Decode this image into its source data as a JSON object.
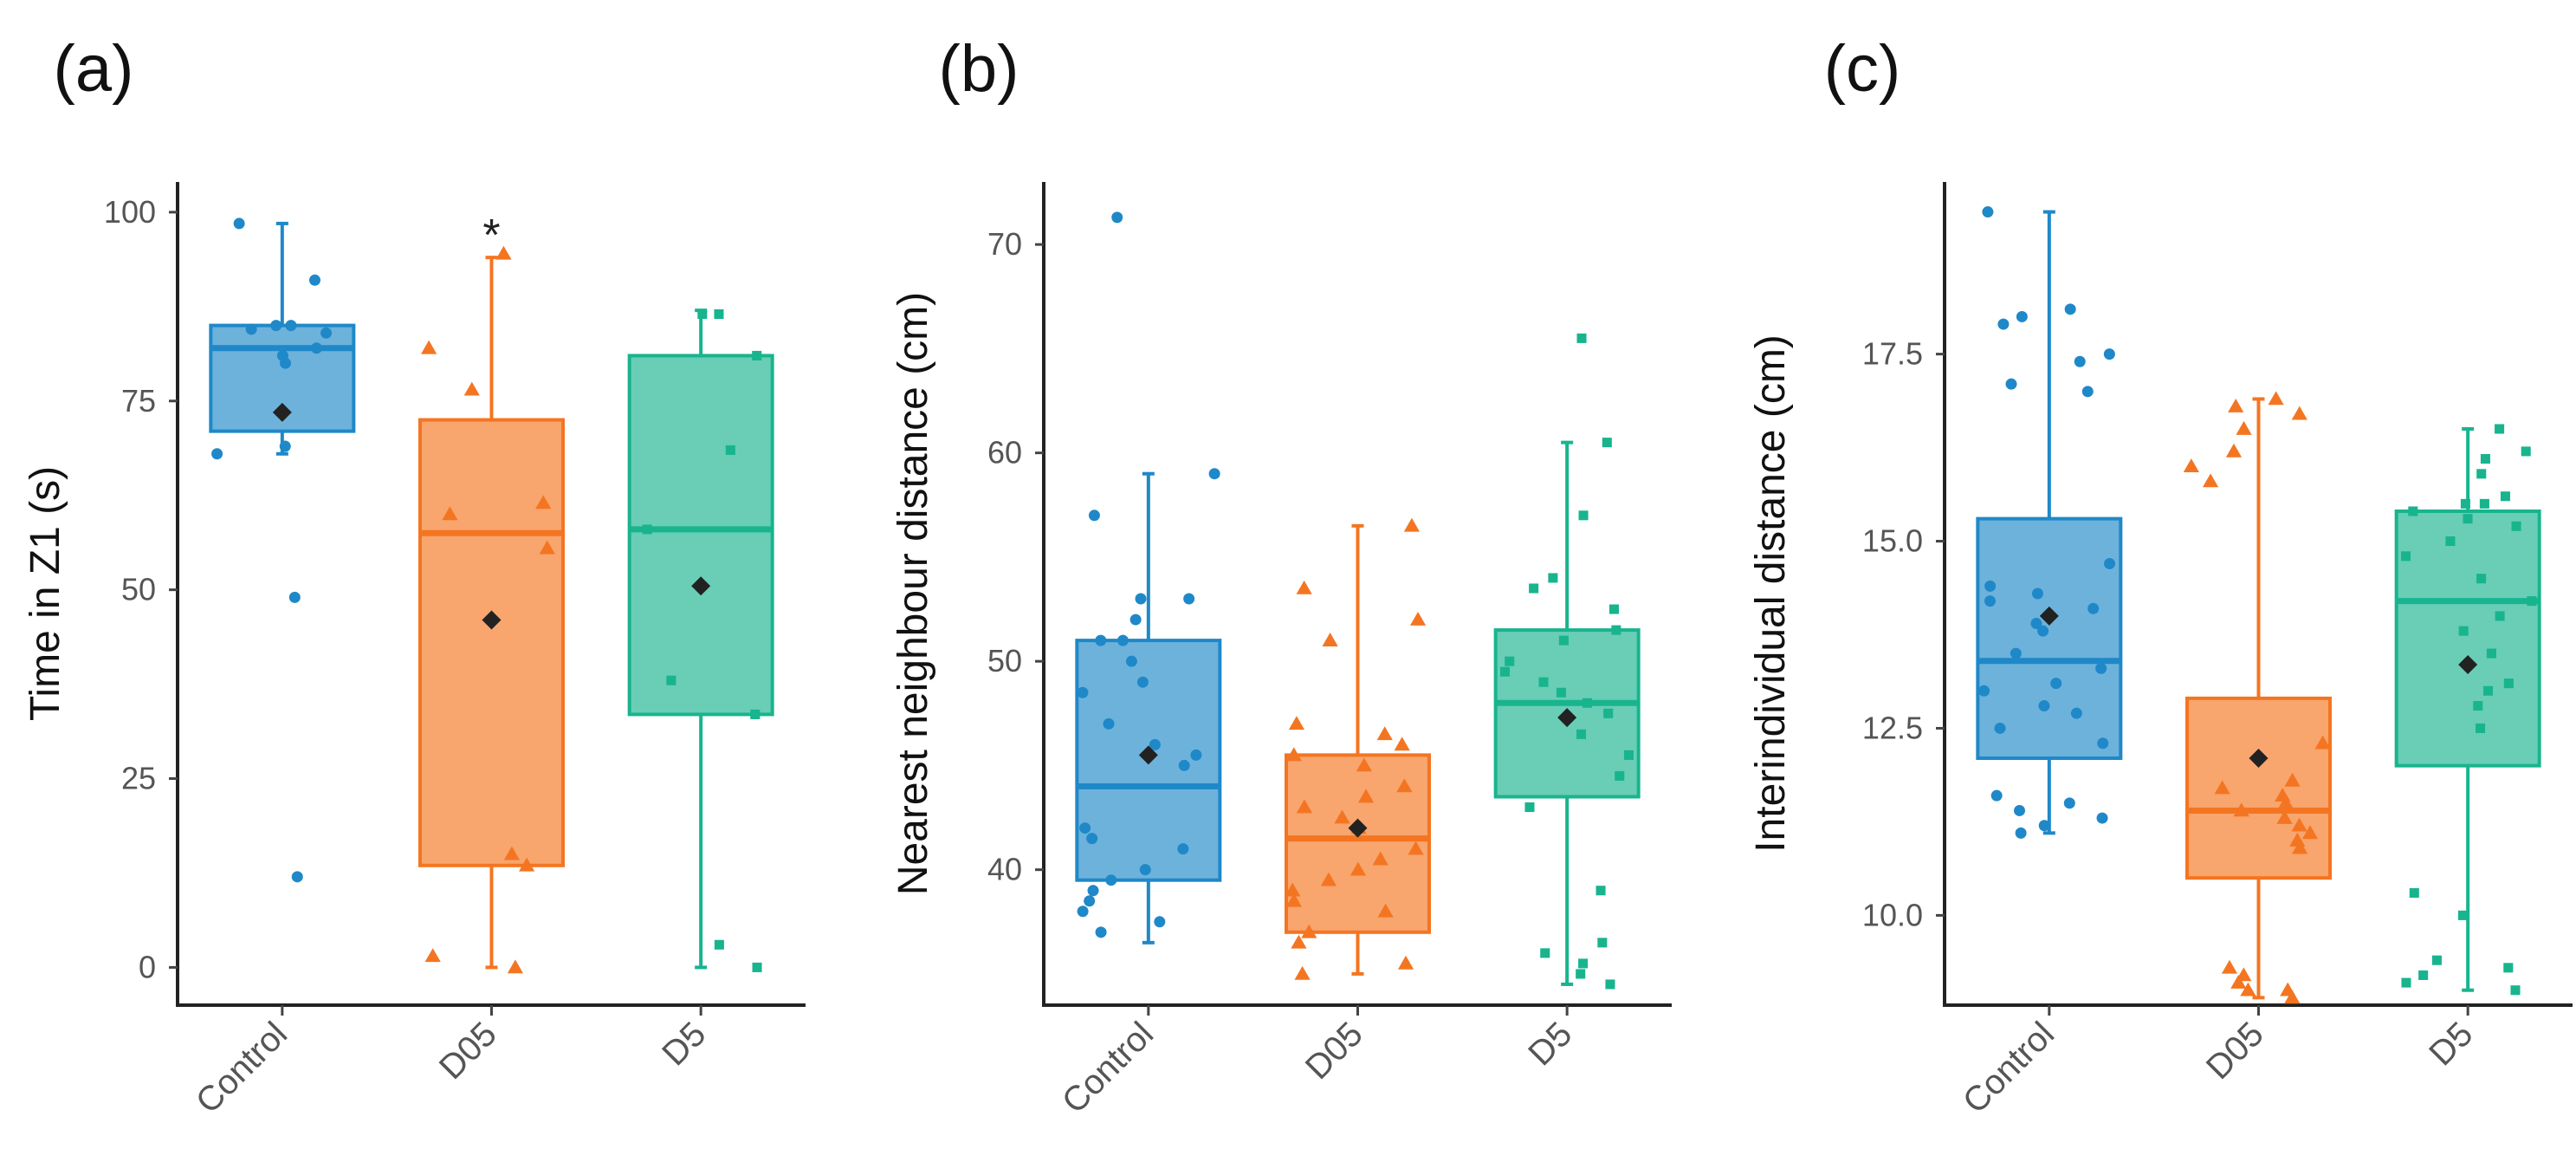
{
  "colors": {
    "Control": "#1f88c8",
    "D05": "#f47521",
    "D5": "#18b48e",
    "mean_marker": "#222222"
  },
  "chart_data": [
    {
      "type": "box",
      "panel_label": "(a)",
      "ylabel": "Time in Z1 (s)",
      "xlabel": "",
      "ylim": [
        -5,
        104
      ],
      "yticks": [
        0,
        25,
        50,
        75,
        100
      ],
      "ytick_labels": [
        "0",
        "25",
        "50",
        "75",
        "100"
      ],
      "categories": [
        "Control",
        "D05",
        "D5"
      ],
      "markers": [
        "circle",
        "triangle",
        "square"
      ],
      "significance": [
        {
          "category": "D05",
          "label": "*"
        }
      ],
      "boxes": [
        {
          "category": "Control",
          "whisker_low": 68,
          "q1": 71,
          "median": 82,
          "q3": 85,
          "whisker_high": 98.5,
          "mean": 73.5,
          "points": [
            98.5,
            91,
            85,
            85,
            84.5,
            84,
            82,
            81,
            80,
            69,
            68,
            49,
            12
          ]
        },
        {
          "category": "D05",
          "whisker_low": 0,
          "q1": 13.5,
          "median": 57.5,
          "q3": 72.5,
          "whisker_high": 94,
          "mean": 46,
          "points": [
            94.5,
            82,
            76.5,
            61.5,
            60,
            55.5,
            15,
            13.5,
            1.5,
            0
          ]
        },
        {
          "category": "D5",
          "whisker_low": 0,
          "q1": 33.5,
          "median": 58,
          "q3": 81,
          "whisker_high": 87,
          "mean": 50.5,
          "points": [
            86.5,
            86.5,
            81,
            68.5,
            58,
            38,
            33.5,
            3,
            0
          ]
        }
      ]
    },
    {
      "type": "box",
      "panel_label": "(b)",
      "ylabel": "Nearest neighbour distance (cm)",
      "xlabel": "",
      "ylim": [
        33.5,
        73
      ],
      "yticks": [
        40,
        50,
        60,
        70
      ],
      "ytick_labels": [
        "40",
        "50",
        "60",
        "70"
      ],
      "categories": [
        "Control",
        "D05",
        "D5"
      ],
      "markers": [
        "circle",
        "triangle",
        "square"
      ],
      "significance": [],
      "boxes": [
        {
          "category": "Control",
          "whisker_low": 36.5,
          "q1": 39.5,
          "median": 44,
          "q3": 51,
          "whisker_high": 59,
          "mean": 45.5,
          "points": [
            71.3,
            59,
            57,
            53,
            53,
            52,
            51,
            51,
            50,
            49,
            48.5,
            47,
            46,
            45.5,
            45,
            42,
            41.5,
            41,
            40,
            39.5,
            39,
            38.5,
            38,
            37.5,
            37
          ]
        },
        {
          "category": "D05",
          "whisker_low": 35,
          "q1": 37,
          "median": 41.5,
          "q3": 45.5,
          "whisker_high": 56.5,
          "mean": 42,
          "points": [
            56.5,
            53.5,
            52,
            51,
            47,
            46.5,
            46,
            45.5,
            45,
            44,
            43.5,
            43,
            42.5,
            42,
            41,
            40.5,
            40,
            39.5,
            39,
            38.5,
            38,
            37,
            36.5,
            35.5,
            35
          ]
        },
        {
          "category": "D5",
          "whisker_low": 34.5,
          "q1": 43.5,
          "median": 48,
          "q3": 51.5,
          "whisker_high": 60.5,
          "mean": 47.3,
          "points": [
            65.5,
            60.5,
            57,
            54,
            53.5,
            52.5,
            51.5,
            51,
            50,
            49.5,
            49,
            48.5,
            48,
            47.5,
            46.5,
            45.5,
            44.5,
            43,
            39,
            36.5,
            36,
            35.5,
            35,
            34.5
          ]
        }
      ]
    },
    {
      "type": "box",
      "panel_label": "(c)",
      "ylabel": "Interindividual distance (cm)",
      "xlabel": "",
      "ylim": [
        8.8,
        19.8
      ],
      "yticks": [
        10,
        12.5,
        15,
        17.5
      ],
      "ytick_labels": [
        "10.0",
        "12.5",
        "15.0",
        "17.5"
      ],
      "categories": [
        "Control",
        "D05",
        "D5"
      ],
      "markers": [
        "circle",
        "triangle",
        "square"
      ],
      "significance": [],
      "boxes": [
        {
          "category": "Control",
          "whisker_low": 11.1,
          "q1": 12.1,
          "median": 13.4,
          "q3": 15.3,
          "whisker_high": 19.4,
          "mean": 14,
          "points": [
            19.4,
            18.1,
            18,
            17.9,
            17.5,
            17.4,
            17.1,
            17,
            14.7,
            14.4,
            14.3,
            14.2,
            14.1,
            13.9,
            13.8,
            13.5,
            13.3,
            13.1,
            13,
            12.8,
            12.7,
            12.5,
            12.3,
            11.6,
            11.5,
            11.4,
            11.3,
            11.2,
            11.1
          ]
        },
        {
          "category": "D05",
          "whisker_low": 8.9,
          "q1": 10.5,
          "median": 11.4,
          "q3": 12.9,
          "whisker_high": 16.9,
          "mean": 12.1,
          "points": [
            16.9,
            16.8,
            16.7,
            16.5,
            16.2,
            16,
            15.8,
            12.3,
            11.8,
            11.7,
            11.6,
            11.5,
            11.4,
            11.3,
            11.2,
            11.1,
            11,
            10.9,
            9.3,
            9.2,
            9.1,
            9,
            9,
            8.9
          ]
        },
        {
          "category": "D5",
          "whisker_low": 9,
          "q1": 12,
          "median": 14.2,
          "q3": 15.4,
          "whisker_high": 16.5,
          "mean": 13.35,
          "points": [
            16.5,
            16.2,
            16.1,
            15.9,
            15.6,
            15.5,
            15.5,
            15.4,
            15.3,
            15.2,
            15,
            14.8,
            14.5,
            14.2,
            14,
            13.8,
            13.5,
            13.1,
            13,
            12.8,
            12.5,
            10.3,
            10,
            9.4,
            9.3,
            9.2,
            9.1,
            9
          ]
        }
      ]
    }
  ]
}
